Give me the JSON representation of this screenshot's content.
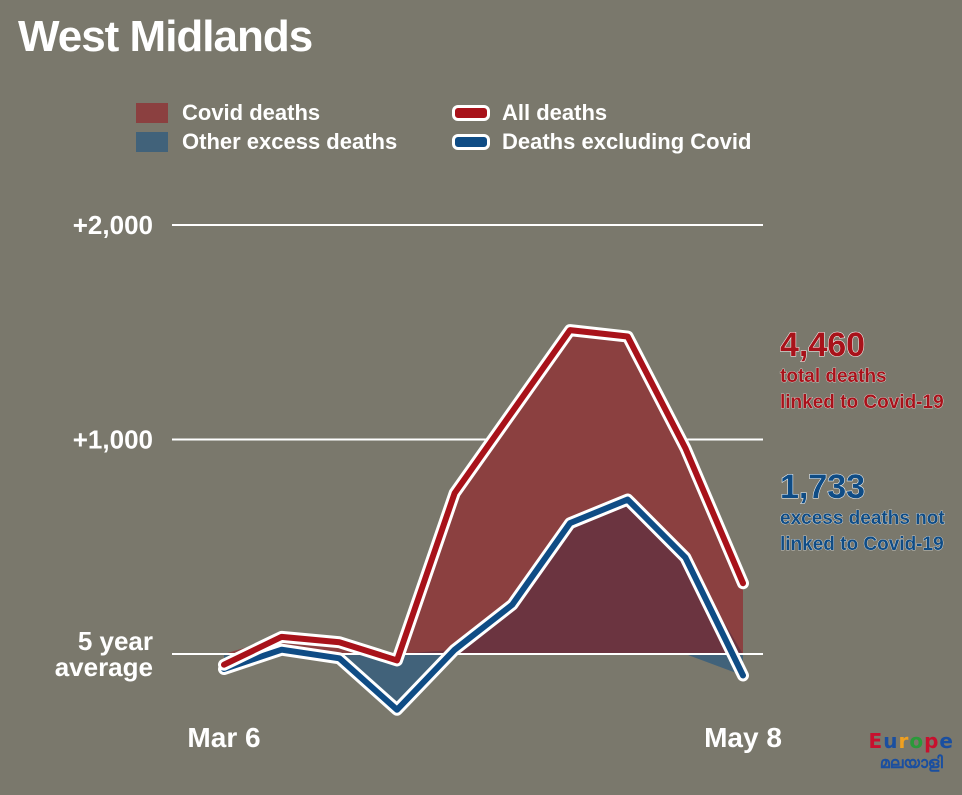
{
  "title": "West Midlands",
  "legend": [
    {
      "label": "Covid deaths",
      "kind": "area",
      "color": "#8b4040"
    },
    {
      "label": "Other excess deaths",
      "kind": "area",
      "color": "#41627a"
    },
    {
      "label": "All deaths",
      "kind": "line",
      "color": "#a8121a"
    },
    {
      "label": "Deaths excluding Covid",
      "kind": "line",
      "color": "#0f4c85"
    }
  ],
  "annotations": {
    "total": {
      "number": "4,460",
      "line1": "total deaths",
      "line2": "linked to Covid-19",
      "color": "#a8121a"
    },
    "excess": {
      "number": "1,733",
      "line1": "excess deaths not",
      "line2": "linked to Covid-19",
      "color": "#0f4c85"
    }
  },
  "logo": {
    "word": "Europe",
    "sub": "മലയാളി"
  },
  "colors": {
    "background": "#7a786c",
    "covid_fill": "#8b4040",
    "other_fill": "#41627a",
    "overlap_fill": "#6b3440",
    "all_line": "#a8121a",
    "excl_line": "#0f4c85"
  },
  "chart_data": {
    "type": "line",
    "title": "West Midlands",
    "x": [
      "Mar 6",
      "",
      "",
      "",
      "",
      "",
      "",
      "",
      "",
      "May 8"
    ],
    "x_tick_labels": [
      "Mar 6",
      "May 8"
    ],
    "ylim": [
      -300,
      2100
    ],
    "y_ticks": [
      0,
      1000,
      2000
    ],
    "y_tick_labels": [
      "5 year\naverage",
      "+1,000",
      "+2,000"
    ],
    "grid": true,
    "series": [
      {
        "name": "All deaths",
        "values": [
          -50,
          80,
          55,
          -30,
          750,
          1130,
          1510,
          1480,
          960,
          330
        ]
      },
      {
        "name": "Deaths excluding Covid",
        "values": [
          -70,
          20,
          -20,
          -260,
          20,
          230,
          610,
          720,
          450,
          -100
        ]
      }
    ]
  }
}
